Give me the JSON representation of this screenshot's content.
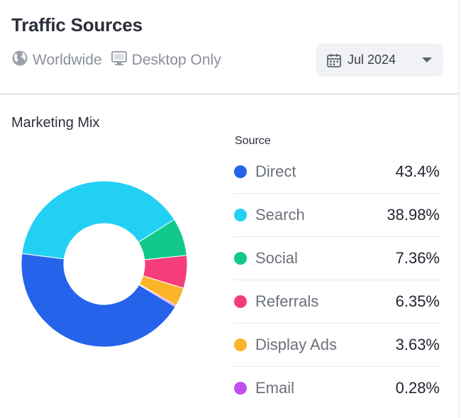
{
  "header": {
    "title": "Traffic Sources",
    "filters": [
      {
        "icon": "globe-icon",
        "label": "Worldwide"
      },
      {
        "icon": "desktop-icon",
        "label": "Desktop Only"
      }
    ],
    "date_selector": {
      "icon": "calendar-icon",
      "label": "Jul 2024",
      "chevron": "chevron-down-icon"
    }
  },
  "section": {
    "title": "Marketing Mix",
    "legend_header": "Source"
  },
  "chart_data": {
    "type": "pie",
    "style": "donut",
    "title": "Marketing Mix",
    "categories": [
      "Direct",
      "Search",
      "Social",
      "Referrals",
      "Display Ads",
      "Email"
    ],
    "values": [
      43.4,
      38.98,
      7.36,
      6.35,
      3.63,
      0.28
    ],
    "labels": [
      "43.4%",
      "38.98%",
      "7.36%",
      "6.35%",
      "3.63%",
      "0.28%"
    ],
    "colors": [
      "#2563eb",
      "#22d0f4",
      "#10c98b",
      "#f53d7a",
      "#fbb52b",
      "#c04ef0"
    ],
    "legend_placement": "right"
  }
}
